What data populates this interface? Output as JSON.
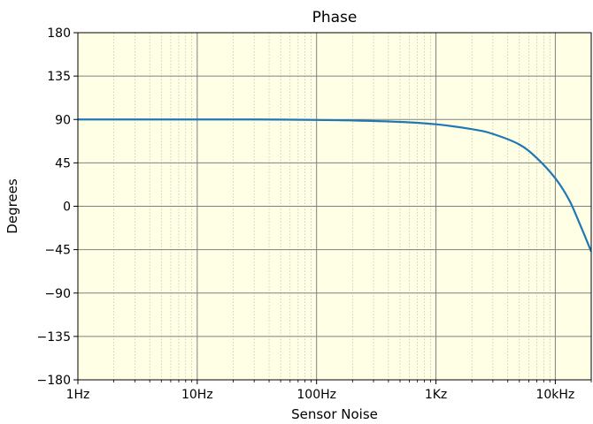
{
  "chart_data": {
    "type": "line",
    "title": "Phase",
    "xlabel": "Sensor Noise",
    "ylabel": "Degrees",
    "x_scale": "log",
    "xlim": [
      1,
      20000
    ],
    "ylim": [
      -180,
      180
    ],
    "x_ticks": [
      1,
      10,
      100,
      1000,
      10000
    ],
    "x_tick_labels": [
      "1Hz",
      "10Hz",
      "100Hz",
      "1Kz",
      "10kHz"
    ],
    "y_ticks": [
      180,
      135,
      90,
      45,
      0,
      -45,
      -90,
      -135,
      -180
    ],
    "y_tick_labels": [
      "180",
      "135",
      "90",
      "45",
      "0",
      "−45",
      "−90",
      "−135",
      "−180"
    ],
    "grid": true,
    "colors": {
      "plot_background": "#ffffe6",
      "line": "#1f77b4",
      "major_grid": "#808080",
      "minor_grid": "#b0b0b0"
    },
    "series": [
      {
        "x": [
          1,
          2,
          5,
          10,
          20,
          50,
          100,
          200,
          500,
          1000,
          2000,
          3000,
          5000,
          7000,
          10000,
          13000,
          16000,
          20000
        ],
        "y": [
          90,
          90,
          90,
          90,
          90,
          89.9,
          89.5,
          89,
          87.5,
          85,
          80,
          75,
          64,
          50,
          29,
          7,
          -18,
          -47
        ]
      }
    ]
  }
}
